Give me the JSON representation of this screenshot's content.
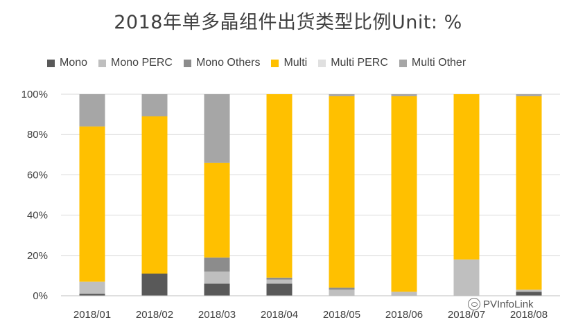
{
  "chart_data": {
    "type": "bar",
    "stacked": true,
    "title": "2018年单多晶组件出货类型比例Unit: %",
    "categories": [
      "2018/01",
      "2018/02",
      "2018/03",
      "2018/04",
      "2018/05",
      "2018/06",
      "2018/07",
      "2018/08"
    ],
    "series": [
      {
        "name": "Mono",
        "color": "#595959",
        "values": [
          1,
          11,
          6,
          6,
          0,
          0,
          0,
          2
        ]
      },
      {
        "name": "Mono PERC",
        "color": "#bfbfbf",
        "values": [
          6,
          0,
          6,
          2,
          3,
          2,
          18,
          1
        ]
      },
      {
        "name": "Mono Others",
        "color": "#8c8c8c",
        "values": [
          0,
          0,
          7,
          1,
          1,
          0,
          0,
          0
        ]
      },
      {
        "name": "Multi",
        "color": "#ffc000",
        "values": [
          77,
          78,
          47,
          91,
          95,
          97,
          82,
          96
        ]
      },
      {
        "name": "Multi PERC",
        "color": "#e0e0e0",
        "values": [
          0,
          0,
          0,
          0,
          0,
          0,
          0,
          0
        ]
      },
      {
        "name": "Multi Other",
        "color": "#a6a6a6",
        "values": [
          16,
          11,
          34,
          0,
          1,
          1,
          0,
          1
        ]
      }
    ],
    "yticks": [
      "0%",
      "20%",
      "40%",
      "60%",
      "80%",
      "100%"
    ],
    "ylim": [
      0,
      100
    ],
    "legend": "top",
    "grid": true
  },
  "watermark": "PVInfoLink",
  "icons": {
    "watermark": "wechat-icon"
  }
}
